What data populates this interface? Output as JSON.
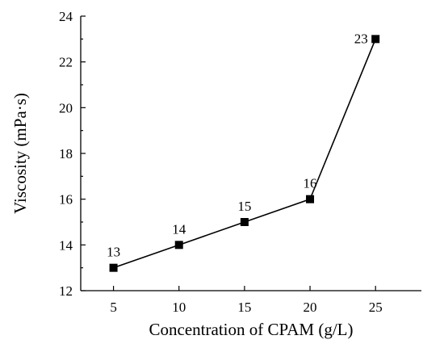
{
  "chart_data": {
    "type": "line",
    "title": "",
    "xlabel": "Concentration of CPAM (g/L)",
    "ylabel": "Viscosity (mPa·s)",
    "x": [
      5,
      10,
      15,
      20,
      25
    ],
    "series": [
      {
        "values": [
          13,
          14,
          15,
          16,
          23
        ],
        "labels": [
          "13",
          "14",
          "15",
          "16",
          "23"
        ],
        "color": "#000000",
        "marker": "square"
      }
    ],
    "xlim": [
      2.5,
      28.5
    ],
    "ylim": [
      12,
      24
    ],
    "xticks": [
      5,
      10,
      15,
      20,
      25
    ],
    "xtick_labels": [
      "5",
      "10",
      "15",
      "20",
      "25"
    ],
    "yticks": [
      12,
      14,
      16,
      18,
      20,
      22,
      24
    ],
    "ytick_labels": [
      "12",
      "14",
      "16",
      "18",
      "20",
      "22",
      "24"
    ],
    "grid": false,
    "legend": "none"
  }
}
